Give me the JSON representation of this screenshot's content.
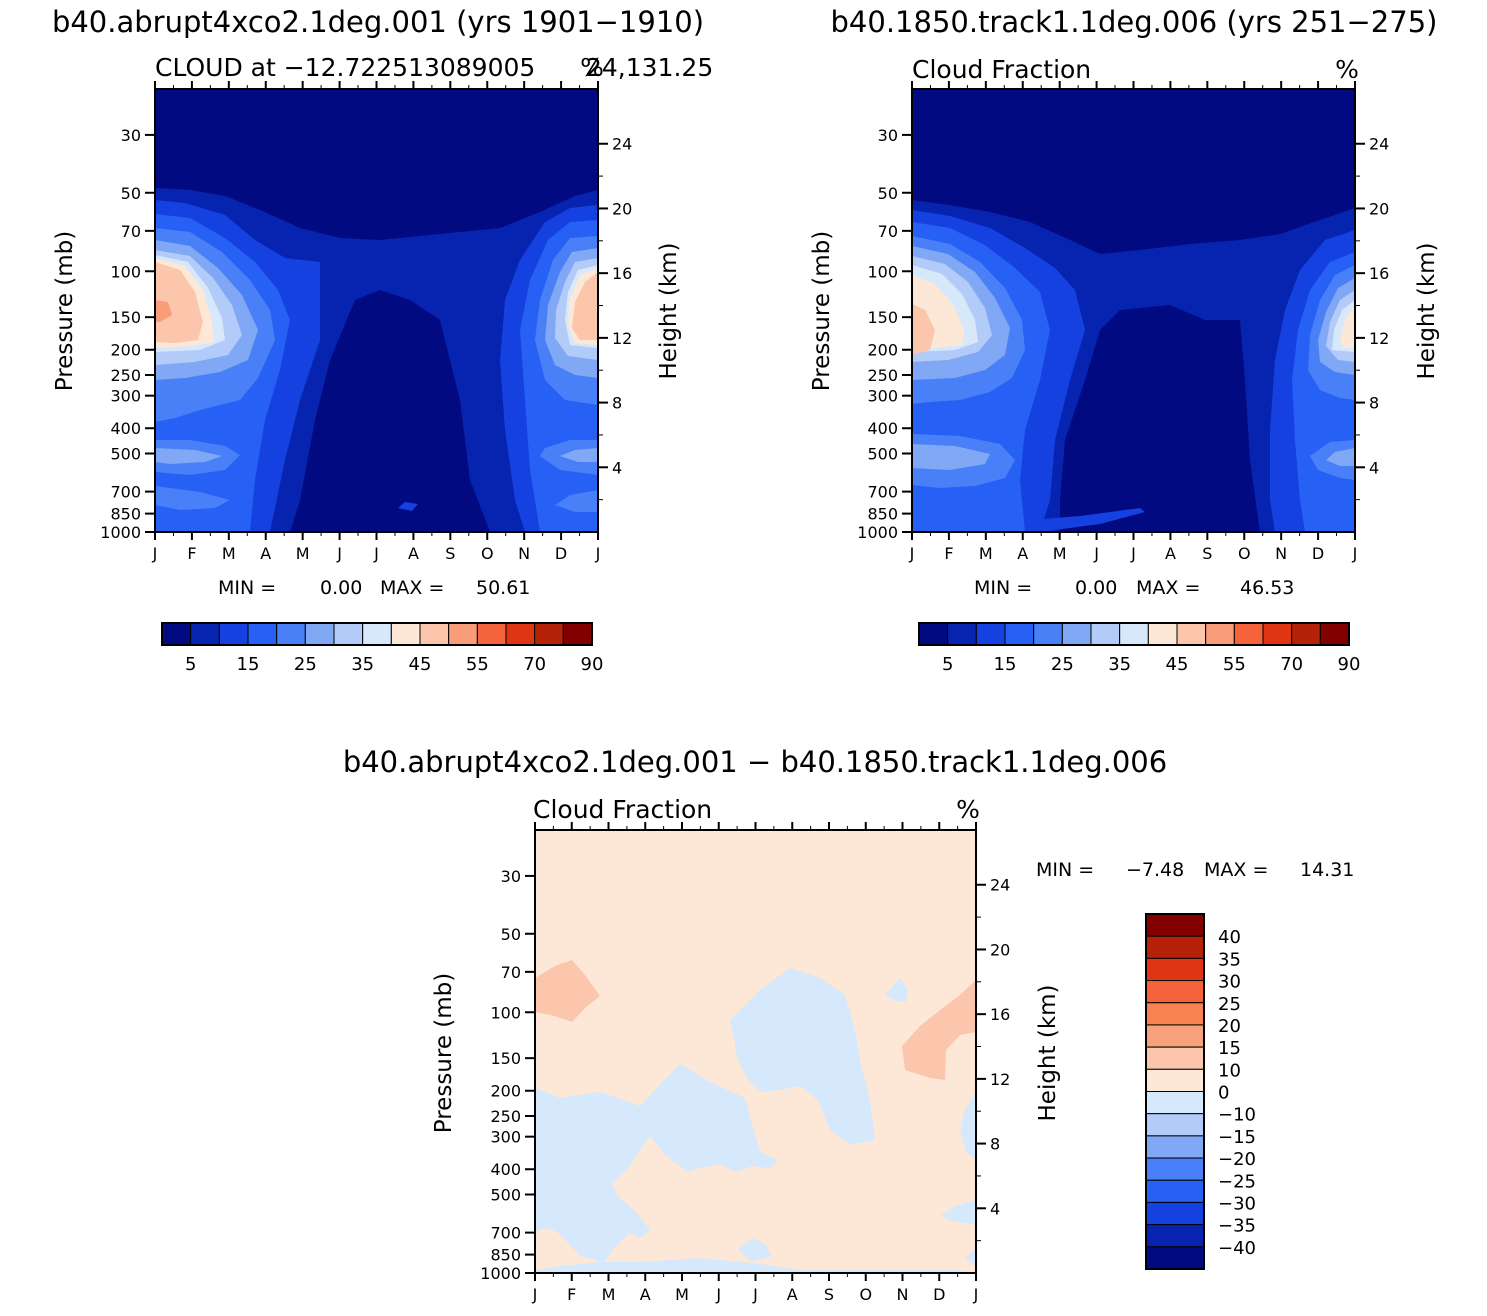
{
  "chart_data": [
    {
      "type": "heatmap",
      "id": "panel1",
      "title": "b40.abrupt4xco2.1deg.001 (yrs 1901−1910)",
      "subtitle_left": "CLOUD at −12.722513089005",
      "subtitle_right_units": "%",
      "subtitle_tail": "24,131.25",
      "ylabel": "Pressure (mb)",
      "y2label": "Height (km)",
      "months": [
        "J",
        "F",
        "M",
        "A",
        "M",
        "J",
        "J",
        "A",
        "S",
        "O",
        "N",
        "D",
        "J"
      ],
      "pressure_ticks": [
        30,
        50,
        70,
        100,
        150,
        200,
        250,
        300,
        400,
        500,
        700,
        850,
        1000
      ],
      "height_ticks": [
        4,
        8,
        12,
        16,
        20,
        24
      ],
      "pressure_range": [
        20,
        1000
      ],
      "min_label": "MIN =",
      "min_value": "0.00",
      "max_label": "MAX =",
      "max_value": "50.61",
      "colorbar_levels": [
        5,
        10,
        15,
        20,
        25,
        30,
        35,
        40,
        45,
        50,
        55,
        60,
        70,
        80,
        90
      ],
      "colorbar_labels": [
        "5",
        "15",
        "25",
        "35",
        "45",
        "55",
        "70",
        "90"
      ],
      "colors": [
        "#020a82",
        "#0724b0",
        "#1441e0",
        "#2660f5",
        "#4a80f7",
        "#80a8f5",
        "#b3cbf8",
        "#d8e8fb",
        "#fde7d6",
        "#fbc6ac",
        "#f99c78",
        "#f5633c",
        "#e03513",
        "#b52209",
        "#820000"
      ],
      "description": "Seasonal cycle of cloud fraction: maxima near 150-250 mb in Dec-Feb (~45-50%), minimum above 200 mb and over 300-850 mb in Jun-Oct."
    },
    {
      "type": "heatmap",
      "id": "panel2",
      "title": "b40.1850.track1.1deg.006 (yrs 251−275)",
      "subtitle_left": "Cloud Fraction",
      "subtitle_right_units": "%",
      "ylabel": "Pressure (mb)",
      "y2label": "Height (km)",
      "months": [
        "J",
        "F",
        "M",
        "A",
        "M",
        "J",
        "J",
        "A",
        "S",
        "O",
        "N",
        "D",
        "J"
      ],
      "pressure_ticks": [
        30,
        50,
        70,
        100,
        150,
        200,
        250,
        300,
        400,
        500,
        700,
        850,
        1000
      ],
      "height_ticks": [
        4,
        8,
        12,
        16,
        20,
        24
      ],
      "pressure_range": [
        20,
        1000
      ],
      "min_label": "MIN =",
      "min_value": "0.00",
      "max_label": "MAX =",
      "max_value": "46.53",
      "colorbar_labels": [
        "5",
        "15",
        "25",
        "35",
        "45",
        "55",
        "70",
        "90"
      ]
    },
    {
      "type": "heatmap",
      "id": "panel3",
      "title": "b40.abrupt4xco2.1deg.001 − b40.1850.track1.1deg.006",
      "subtitle_left": "Cloud Fraction",
      "subtitle_right_units": "%",
      "ylabel": "Pressure (mb)",
      "y2label": "Height (km)",
      "months": [
        "J",
        "F",
        "M",
        "A",
        "M",
        "J",
        "J",
        "A",
        "S",
        "O",
        "N",
        "D",
        "J"
      ],
      "pressure_ticks": [
        30,
        50,
        70,
        100,
        150,
        200,
        250,
        300,
        400,
        500,
        700,
        850,
        1000
      ],
      "height_ticks": [
        4,
        8,
        12,
        16,
        20,
        24
      ],
      "pressure_range": [
        20,
        1000
      ],
      "min_label": "MIN =",
      "min_value": "−7.48",
      "max_label": "MAX =",
      "max_value": "14.31",
      "colorbar_levels": [
        -40,
        -35,
        -30,
        -25,
        -20,
        -15,
        -10,
        0,
        10,
        15,
        20,
        25,
        30,
        35,
        40
      ],
      "colorbar_labels": [
        "40",
        "35",
        "30",
        "25",
        "20",
        "15",
        "10",
        "0",
        "−10",
        "−15",
        "−20",
        "−25",
        "−30",
        "−35",
        "−40"
      ],
      "colors": [
        "#820000",
        "#b52209",
        "#e03513",
        "#f5633c",
        "#f98350",
        "#f9a07c",
        "#fbc6ac",
        "#fde7d6",
        "#d6e8fb",
        "#b3cbf8",
        "#80a8f5",
        "#4a80f7",
        "#2660f5",
        "#1441e0",
        "#0724b0",
        "#020a82"
      ]
    }
  ]
}
